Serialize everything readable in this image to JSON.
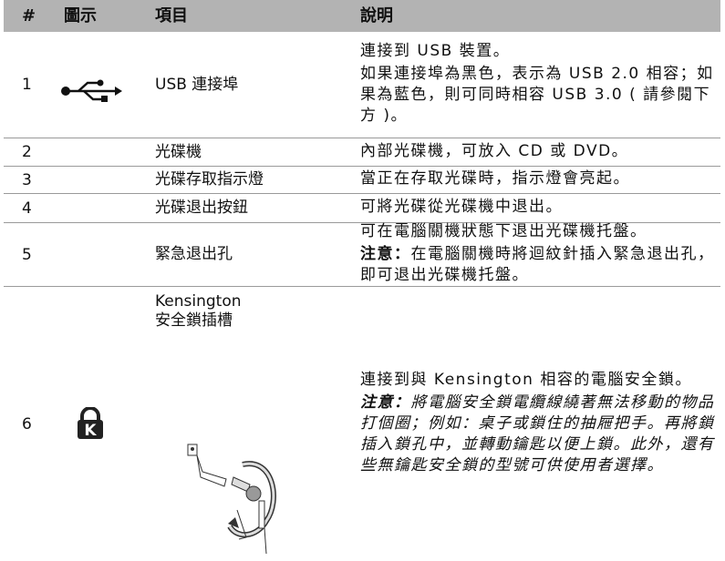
{
  "table": {
    "header": [
      "#",
      "圖示",
      "項目",
      "說明"
    ],
    "rows": [
      {
        "number": "1",
        "item_lines": [
          "USB 連接埠"
        ],
        "description": [
          "連接到 USB 裝置。",
          "如果連接埠為黑色，表示為 USB 2.0 相容；如果為藍色，則可同時相容 USB 3.0 ( 請參閱下方 )。"
        ]
      },
      {
        "number": "2",
        "item_lines": [
          "光碟機"
        ],
        "description": [
          "內部光碟機，可放入 CD 或 DVD。"
        ]
      },
      {
        "number": "3",
        "item_lines": [
          "光碟存取指示燈"
        ],
        "description": [
          "當正在存取光碟時，指示燈會亮起。"
        ]
      },
      {
        "number": "4",
        "item_lines": [
          "光碟退出按鈕"
        ],
        "description": [
          "可將光碟從光碟機中退出。"
        ]
      },
      {
        "number": "5",
        "item_lines": [
          "緊急退出孔"
        ],
        "description": [
          "可在電腦關機狀態下退出光碟機托盤。"
        ],
        "note": {
          "label": "注意：",
          "text": "在電腦關機時將迴紋針插入緊急退出孔，即可退出光碟機托盤。"
        }
      },
      {
        "number": "6",
        "item_lines": [
          "Kensington",
          "安全鎖插槽"
        ],
        "description": [
          "連接到與 Kensington 相容的電腦安全鎖。"
        ],
        "note": {
          "label": "注意：",
          "text": "將電腦安全鎖電纜線繞著無法移動的物品打個圈；例如：桌子或鎖住的抽屜把手。再將鎖插入鎖孔中，並轉動鑰匙以便上鎖。此外，還有些無鑰匙安全鎖的型號可供使用者選擇。",
          "italic": true
        }
      }
    ]
  }
}
